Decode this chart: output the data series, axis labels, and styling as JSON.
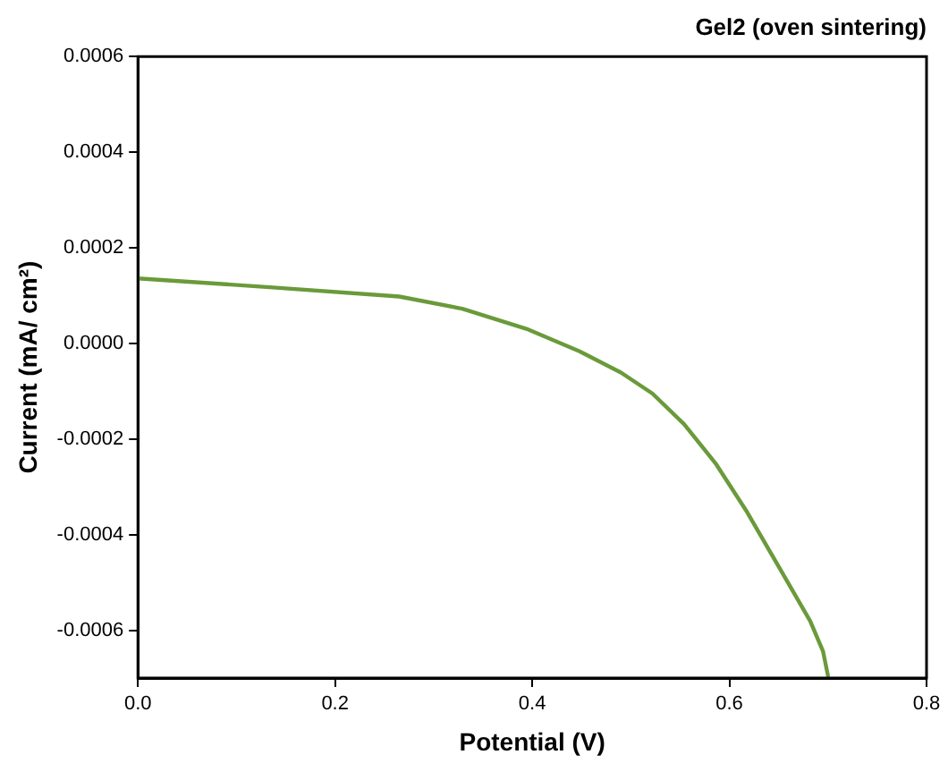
{
  "chart_data": {
    "type": "line",
    "title": "Gel2 (oven sintering)",
    "xlabel": "Potential (V)",
    "ylabel": "Current (mA/ cm²)",
    "xlim": [
      0,
      0.8
    ],
    "xticks": [
      {
        "value": 0,
        "label": "0.0"
      },
      0.2,
      0.4,
      0.6,
      0.8
    ],
    "ylim": [
      -0.0007,
      0.0006
    ],
    "yticks": [
      {
        "value": -0.0006,
        "label": "-0.0006"
      },
      {
        "value": -0.0004,
        "label": "-0.0004"
      },
      {
        "value": -0.0002,
        "label": "-0.0002"
      },
      {
        "value": 0,
        "label": "0.0000"
      },
      {
        "value": 0.0002,
        "label": "0.0002"
      },
      {
        "value": 0.0004,
        "label": "0.0004"
      },
      {
        "value": 0.0006,
        "label": "0.0006"
      }
    ],
    "grid": false,
    "legend": false,
    "marker": "none",
    "line_style": "solid",
    "series": [
      {
        "color": "#6a9a3a",
        "x": [
          0,
          0.137,
          0.265,
          0.329,
          0.394,
          0.448,
          0.49,
          0.522,
          0.554,
          0.586,
          0.618,
          0.65,
          0.682,
          0.695,
          0.7
        ],
        "values": [
          0.000136,
          0.000117,
          9.8e-05,
          7.25e-05,
          3.05e-05,
          -1.65e-05,
          -6.1e-05,
          -0.000105,
          -0.000169,
          -0.000251,
          -0.000353,
          -0.000467,
          -0.000581,
          -0.000644,
          -0.000695
        ]
      }
    ]
  }
}
